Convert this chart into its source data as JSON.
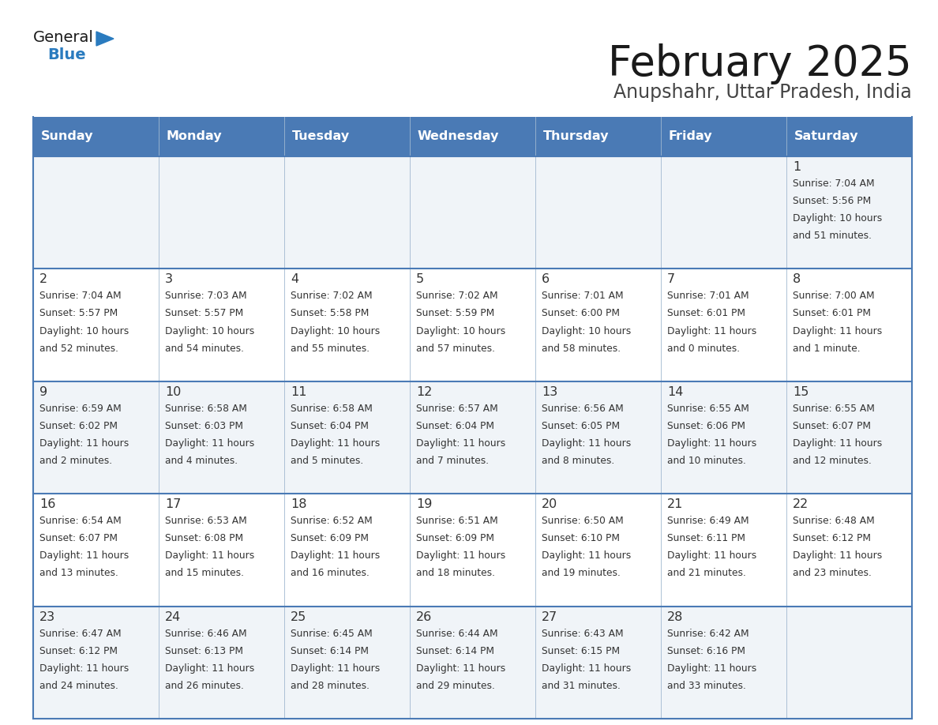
{
  "title": "February 2025",
  "subtitle": "Anupshahr, Uttar Pradesh, India",
  "days_of_week": [
    "Sunday",
    "Monday",
    "Tuesday",
    "Wednesday",
    "Thursday",
    "Friday",
    "Saturday"
  ],
  "header_bg": "#4a7ab5",
  "header_text": "#ffffff",
  "row_bg_odd": "#f0f4f8",
  "row_bg_even": "#ffffff",
  "border_color": "#4a7ab5",
  "cell_border_color": "#a0b8d0",
  "title_color": "#1a1a1a",
  "subtitle_color": "#444444",
  "day_number_color": "#333333",
  "info_color": "#333333",
  "calendar_data": [
    [
      null,
      null,
      null,
      null,
      null,
      null,
      {
        "day": 1,
        "sunrise": "7:04 AM",
        "sunset": "5:56 PM",
        "daylight_hours": 10,
        "daylight_minutes": 51
      }
    ],
    [
      {
        "day": 2,
        "sunrise": "7:04 AM",
        "sunset": "5:57 PM",
        "daylight_hours": 10,
        "daylight_minutes": 52
      },
      {
        "day": 3,
        "sunrise": "7:03 AM",
        "sunset": "5:57 PM",
        "daylight_hours": 10,
        "daylight_minutes": 54
      },
      {
        "day": 4,
        "sunrise": "7:02 AM",
        "sunset": "5:58 PM",
        "daylight_hours": 10,
        "daylight_minutes": 55
      },
      {
        "day": 5,
        "sunrise": "7:02 AM",
        "sunset": "5:59 PM",
        "daylight_hours": 10,
        "daylight_minutes": 57
      },
      {
        "day": 6,
        "sunrise": "7:01 AM",
        "sunset": "6:00 PM",
        "daylight_hours": 10,
        "daylight_minutes": 58
      },
      {
        "day": 7,
        "sunrise": "7:01 AM",
        "sunset": "6:01 PM",
        "daylight_hours": 11,
        "daylight_minutes": 0
      },
      {
        "day": 8,
        "sunrise": "7:00 AM",
        "sunset": "6:01 PM",
        "daylight_hours": 11,
        "daylight_minutes": 1
      }
    ],
    [
      {
        "day": 9,
        "sunrise": "6:59 AM",
        "sunset": "6:02 PM",
        "daylight_hours": 11,
        "daylight_minutes": 2
      },
      {
        "day": 10,
        "sunrise": "6:58 AM",
        "sunset": "6:03 PM",
        "daylight_hours": 11,
        "daylight_minutes": 4
      },
      {
        "day": 11,
        "sunrise": "6:58 AM",
        "sunset": "6:04 PM",
        "daylight_hours": 11,
        "daylight_minutes": 5
      },
      {
        "day": 12,
        "sunrise": "6:57 AM",
        "sunset": "6:04 PM",
        "daylight_hours": 11,
        "daylight_minutes": 7
      },
      {
        "day": 13,
        "sunrise": "6:56 AM",
        "sunset": "6:05 PM",
        "daylight_hours": 11,
        "daylight_minutes": 8
      },
      {
        "day": 14,
        "sunrise": "6:55 AM",
        "sunset": "6:06 PM",
        "daylight_hours": 11,
        "daylight_minutes": 10
      },
      {
        "day": 15,
        "sunrise": "6:55 AM",
        "sunset": "6:07 PM",
        "daylight_hours": 11,
        "daylight_minutes": 12
      }
    ],
    [
      {
        "day": 16,
        "sunrise": "6:54 AM",
        "sunset": "6:07 PM",
        "daylight_hours": 11,
        "daylight_minutes": 13
      },
      {
        "day": 17,
        "sunrise": "6:53 AM",
        "sunset": "6:08 PM",
        "daylight_hours": 11,
        "daylight_minutes": 15
      },
      {
        "day": 18,
        "sunrise": "6:52 AM",
        "sunset": "6:09 PM",
        "daylight_hours": 11,
        "daylight_minutes": 16
      },
      {
        "day": 19,
        "sunrise": "6:51 AM",
        "sunset": "6:09 PM",
        "daylight_hours": 11,
        "daylight_minutes": 18
      },
      {
        "day": 20,
        "sunrise": "6:50 AM",
        "sunset": "6:10 PM",
        "daylight_hours": 11,
        "daylight_minutes": 19
      },
      {
        "day": 21,
        "sunrise": "6:49 AM",
        "sunset": "6:11 PM",
        "daylight_hours": 11,
        "daylight_minutes": 21
      },
      {
        "day": 22,
        "sunrise": "6:48 AM",
        "sunset": "6:12 PM",
        "daylight_hours": 11,
        "daylight_minutes": 23
      }
    ],
    [
      {
        "day": 23,
        "sunrise": "6:47 AM",
        "sunset": "6:12 PM",
        "daylight_hours": 11,
        "daylight_minutes": 24
      },
      {
        "day": 24,
        "sunrise": "6:46 AM",
        "sunset": "6:13 PM",
        "daylight_hours": 11,
        "daylight_minutes": 26
      },
      {
        "day": 25,
        "sunrise": "6:45 AM",
        "sunset": "6:14 PM",
        "daylight_hours": 11,
        "daylight_minutes": 28
      },
      {
        "day": 26,
        "sunrise": "6:44 AM",
        "sunset": "6:14 PM",
        "daylight_hours": 11,
        "daylight_minutes": 29
      },
      {
        "day": 27,
        "sunrise": "6:43 AM",
        "sunset": "6:15 PM",
        "daylight_hours": 11,
        "daylight_minutes": 31
      },
      {
        "day": 28,
        "sunrise": "6:42 AM",
        "sunset": "6:16 PM",
        "daylight_hours": 11,
        "daylight_minutes": 33
      },
      null
    ]
  ],
  "logo_text_general": "General",
  "logo_text_blue": "Blue",
  "logo_color_general": "#1a1a1a",
  "logo_color_blue": "#2a7bbf",
  "logo_triangle_color": "#2a7bbf"
}
